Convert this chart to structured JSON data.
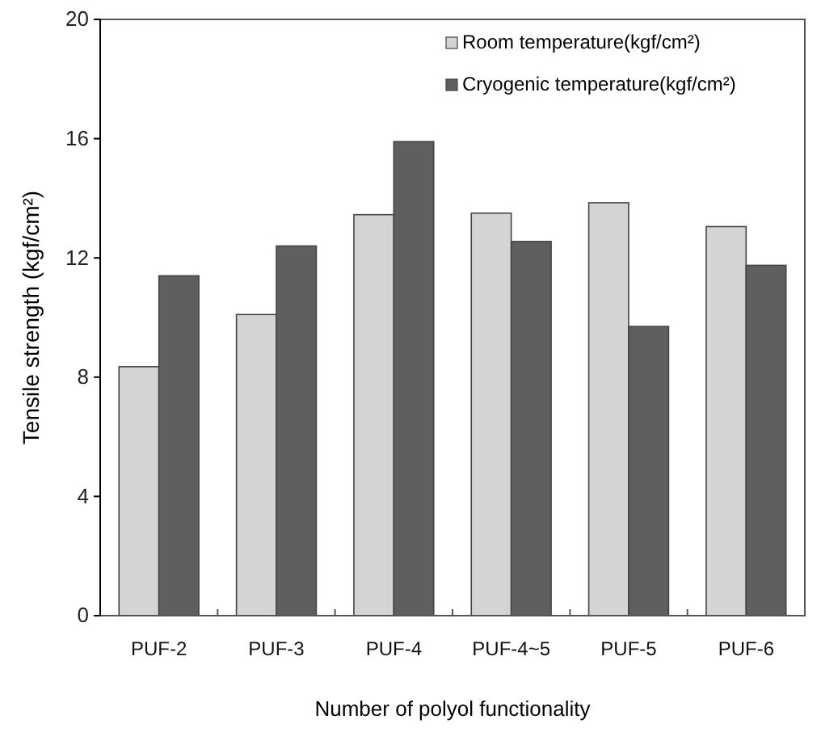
{
  "chart_data": {
    "type": "bar",
    "xlabel": "Number of polyol functionality",
    "ylabel": "Tensile  strength (kgf/cm²)",
    "categories": [
      "PUF-2",
      "PUF-3",
      "PUF-4",
      "PUF-4~5",
      "PUF-5",
      "PUF-6"
    ],
    "series": [
      {
        "name": "Room temperature(kgf/cm²)",
        "color": "#d4d4d4",
        "values": [
          8.35,
          10.1,
          13.45,
          13.5,
          13.85,
          13.05
        ]
      },
      {
        "name": "Cryogenic temperature(kgf/cm²)",
        "color": "#5f5f5f",
        "values": [
          11.4,
          12.4,
          15.9,
          12.55,
          9.7,
          11.75
        ]
      }
    ],
    "ylim": [
      0,
      20
    ],
    "yticks": [
      0,
      4,
      8,
      12,
      16,
      20
    ],
    "grid": false,
    "legend": "top right"
  }
}
